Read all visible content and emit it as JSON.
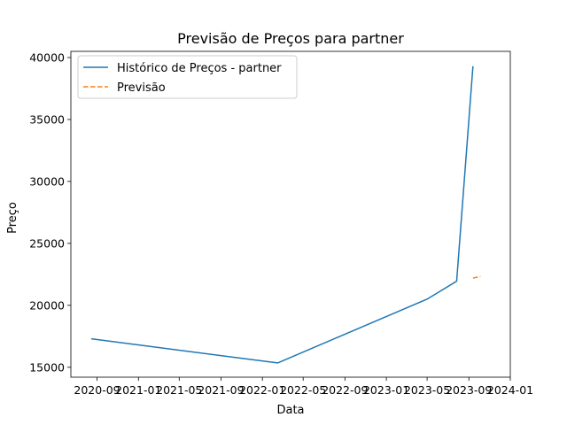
{
  "chart_data": {
    "type": "line",
    "title": "Previsão de Preços para partner",
    "xlabel": "Data",
    "ylabel": "Preço",
    "xlim": [
      "2020-06-16",
      "2024-01-01"
    ],
    "ylim": [
      14200,
      40500
    ],
    "x_ticks": [
      "2020-09",
      "2021-01",
      "2021-05",
      "2021-09",
      "2022-01",
      "2022-05",
      "2022-09",
      "2023-01",
      "2023-05",
      "2023-09",
      "2024-01"
    ],
    "y_ticks": [
      15000,
      20000,
      25000,
      30000,
      35000,
      40000
    ],
    "grid": false,
    "legend_position": "upper-left",
    "series": [
      {
        "name": "Histórico de Preços - partner",
        "color": "#1f77b4",
        "style": "solid",
        "points": [
          {
            "x": "2020-08-15",
            "y": 17300
          },
          {
            "x": "2022-02-15",
            "y": 15350
          },
          {
            "x": "2023-05-01",
            "y": 20500
          },
          {
            "x": "2023-07-27",
            "y": 21950
          },
          {
            "x": "2023-09-13",
            "y": 39300
          }
        ]
      },
      {
        "name": "Previsão",
        "color": "#ff7f0e",
        "style": "dashed",
        "points": [
          {
            "x": "2023-09-13",
            "y": 22200
          },
          {
            "x": "2023-10-05",
            "y": 22330
          }
        ]
      }
    ]
  }
}
